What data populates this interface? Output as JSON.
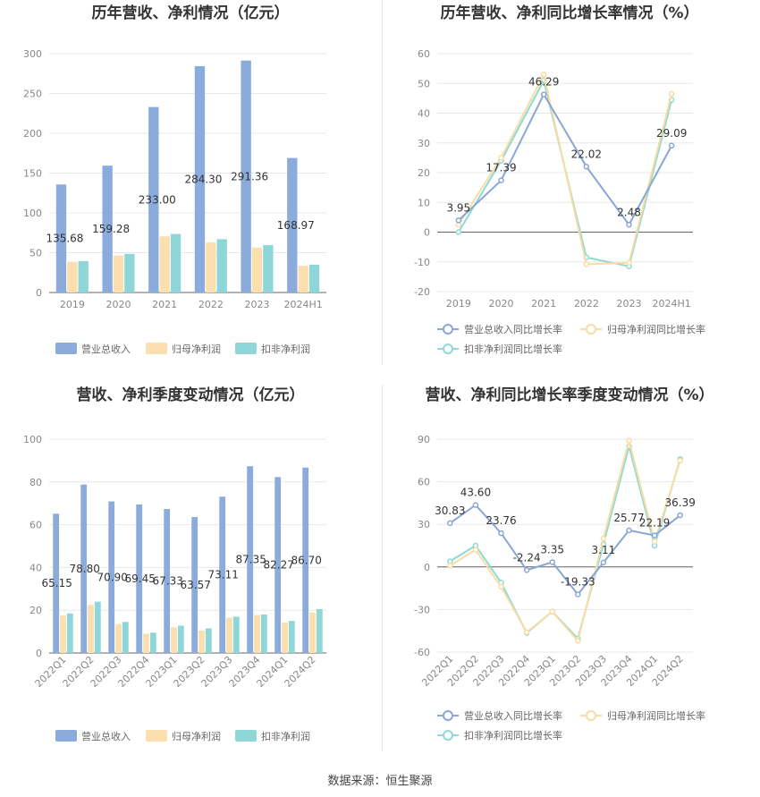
{
  "colors": {
    "revenue": "#8aabdb",
    "parent_net": "#fbdfaf",
    "deducted_net": "#8fd6d8",
    "revenue_line": "#8aa6d6",
    "parent_line": "#f9dca4",
    "deducted_line": "#8ddbd3",
    "grid": "#e8e8e8",
    "axis": "#666666"
  },
  "footer": "数据来源：恒生聚源",
  "chart_data": [
    {
      "id": "annual-bar",
      "type": "bar",
      "title": "历年营收、净利情况（亿元）",
      "categories": [
        "2019",
        "2020",
        "2021",
        "2022",
        "2023",
        "2024H1"
      ],
      "ylim": [
        0,
        300
      ],
      "yticks": [
        0,
        50,
        100,
        150,
        200,
        250,
        300
      ],
      "rotate_xticks": false,
      "series": [
        {
          "name": "营业总收入",
          "values": [
            135.68,
            159.28,
            233.0,
            284.3,
            291.36,
            168.97
          ],
          "labels": [
            "135.68",
            "159.28",
            "233.00",
            "284.30",
            "291.36",
            "168.97"
          ]
        },
        {
          "name": "归母净利润",
          "values": [
            38.5,
            46.5,
            70.5,
            63.0,
            56.5,
            33.5
          ]
        },
        {
          "name": "扣非净利润",
          "values": [
            39.5,
            48.5,
            73.5,
            67.0,
            59.5,
            35.0
          ]
        }
      ],
      "legend": "bottom"
    },
    {
      "id": "annual-line",
      "type": "line",
      "title": "历年营收、净利同比增长率情况（%）",
      "categories": [
        "2019",
        "2020",
        "2021",
        "2022",
        "2023",
        "2024H1"
      ],
      "ylim": [
        -20,
        60
      ],
      "yticks": [
        -20,
        -10,
        0,
        10,
        20,
        30,
        40,
        50,
        60
      ],
      "rotate_xticks": false,
      "series": [
        {
          "name": "营业总收入同比增长率",
          "values": [
            3.95,
            17.39,
            46.29,
            22.02,
            2.48,
            29.09
          ],
          "labels": [
            "3.95",
            "17.39",
            "46.29",
            "22.02",
            "2.48",
            "29.09"
          ]
        },
        {
          "name": "归母净利润同比增长率",
          "values": [
            2.5,
            25.0,
            53.0,
            -10.8,
            -10.3,
            46.5
          ]
        },
        {
          "name": "扣非净利润同比增长率",
          "values": [
            0.0,
            24.0,
            51.0,
            -8.5,
            -11.5,
            44.5
          ]
        }
      ],
      "legend": "bottom"
    },
    {
      "id": "quarter-bar",
      "type": "bar",
      "title": "营收、净利季度变动情况（亿元）",
      "categories": [
        "2022Q1",
        "2022Q2",
        "2022Q3",
        "2022Q4",
        "2023Q1",
        "2023Q2",
        "2023Q3",
        "2023Q4",
        "2024Q1",
        "2024Q2"
      ],
      "ylim": [
        0,
        100
      ],
      "yticks": [
        0,
        20,
        40,
        60,
        80,
        100
      ],
      "rotate_xticks": true,
      "series": [
        {
          "name": "营业总收入",
          "values": [
            65.15,
            78.8,
            70.9,
            69.45,
            67.33,
            63.57,
            73.11,
            87.35,
            82.27,
            86.7
          ],
          "labels": [
            "65.15",
            "78.80",
            "70.90",
            "69.45",
            "67.33",
            "63.57",
            "73.11",
            "87.35",
            "82.27",
            "86.70"
          ]
        },
        {
          "name": "归母净利润",
          "values": [
            17.5,
            22.5,
            13.5,
            9.0,
            12.0,
            10.5,
            16.5,
            17.8,
            14.3,
            19.0
          ]
        },
        {
          "name": "扣非净利润",
          "values": [
            18.5,
            24.0,
            14.5,
            9.5,
            12.8,
            11.5,
            17.0,
            18.0,
            15.0,
            20.5
          ]
        }
      ],
      "legend": "bottom"
    },
    {
      "id": "quarter-line",
      "type": "line",
      "title": "营收、净利同比增长率季度变动情况（%）",
      "categories": [
        "2022Q1",
        "2022Q2",
        "2022Q3",
        "2022Q4",
        "2023Q1",
        "2023Q2",
        "2023Q3",
        "2023Q4",
        "2024Q1",
        "2024Q2"
      ],
      "ylim": [
        -60,
        90
      ],
      "yticks": [
        -60,
        -30,
        0,
        30,
        60,
        90
      ],
      "rotate_xticks": true,
      "series": [
        {
          "name": "营业总收入同比增长率",
          "values": [
            30.83,
            43.6,
            23.76,
            -2.24,
            3.35,
            -19.33,
            3.11,
            25.77,
            22.19,
            36.39
          ],
          "labels": [
            "30.83",
            "43.60",
            "23.76",
            "-2.24",
            "3.35",
            "-19.33",
            "3.11",
            "25.77",
            "22.19",
            "36.39"
          ]
        },
        {
          "name": "归母净利润同比增长率",
          "values": [
            1.0,
            12.0,
            -14.0,
            -46.0,
            -31.5,
            -52.0,
            20.0,
            89.0,
            18.0,
            75.0
          ]
        },
        {
          "name": "扣非净利润同比增长率",
          "values": [
            4.0,
            15.0,
            -11.0,
            -46.5,
            -31.5,
            -50.5,
            16.0,
            85.0,
            15.0,
            76.0
          ]
        }
      ],
      "legend": "bottom"
    }
  ]
}
